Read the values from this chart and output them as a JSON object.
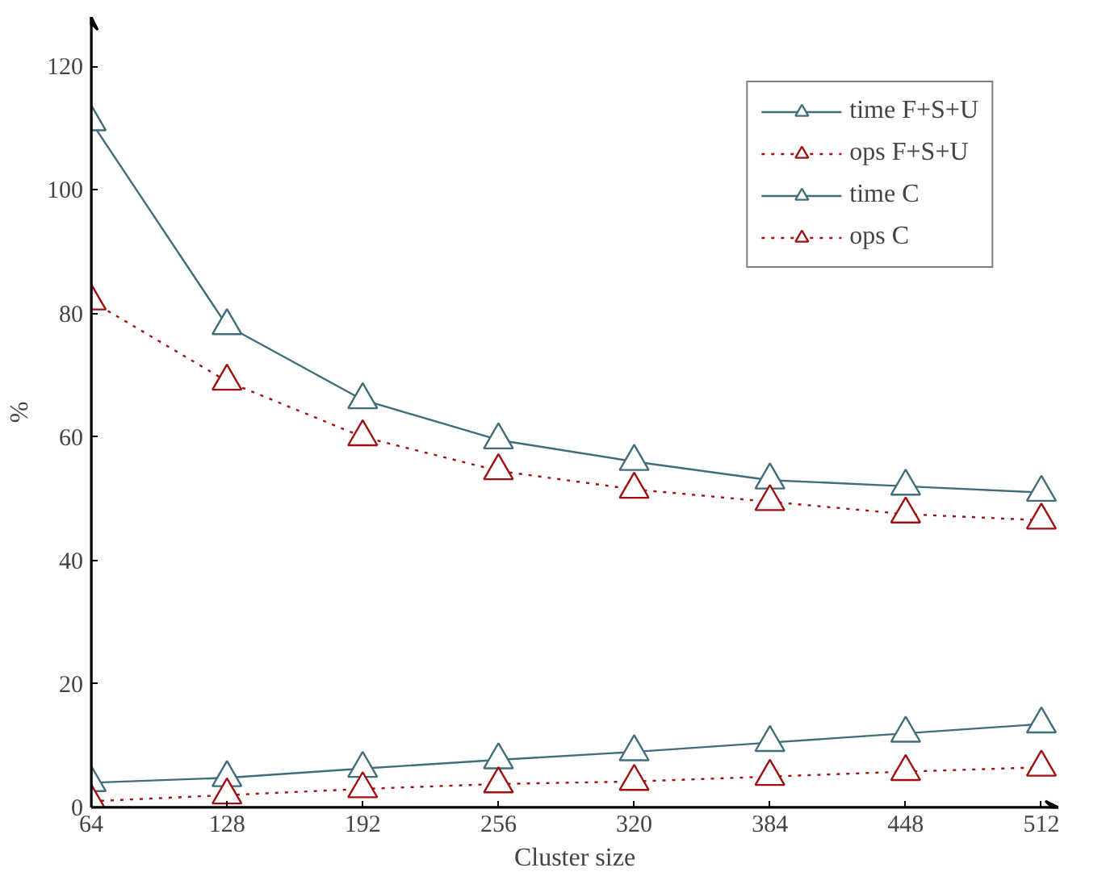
{
  "chart_data": {
    "type": "line",
    "xlabel": "Cluster size",
    "ylabel": "%",
    "x": [
      64,
      128,
      192,
      256,
      320,
      384,
      448,
      512
    ],
    "xlim": [
      64,
      520
    ],
    "xticks": [
      64,
      128,
      192,
      256,
      320,
      384,
      448,
      512
    ],
    "ylim": [
      0,
      128
    ],
    "yticks": [
      0,
      20,
      40,
      60,
      80,
      100,
      120
    ],
    "grid": false,
    "legend": "top right",
    "series": [
      {
        "name": "time F+S+U",
        "color": "#3f6e7a",
        "marker": "triangle",
        "line_style": "solid",
        "values": [
          111,
          78,
          66,
          59.5,
          56,
          53,
          52,
          51
        ]
      },
      {
        "name": "ops F+S+U",
        "color": "#a01010",
        "marker": "triangle",
        "line_style": "dotted",
        "values": [
          82,
          69,
          60,
          54.5,
          51.5,
          49.5,
          47.5,
          46.5
        ]
      },
      {
        "name": "time C",
        "color": "#3f6e7a",
        "marker": "triangle",
        "line_style": "solid",
        "values": [
          4,
          4.8,
          6.3,
          7.7,
          9,
          10.5,
          12,
          13.5
        ]
      },
      {
        "name": "ops C",
        "color": "#a01010",
        "marker": "triangle",
        "line_style": "dotted",
        "values": [
          1,
          2,
          3,
          3.8,
          4.2,
          5,
          5.8,
          6.5
        ]
      }
    ]
  }
}
